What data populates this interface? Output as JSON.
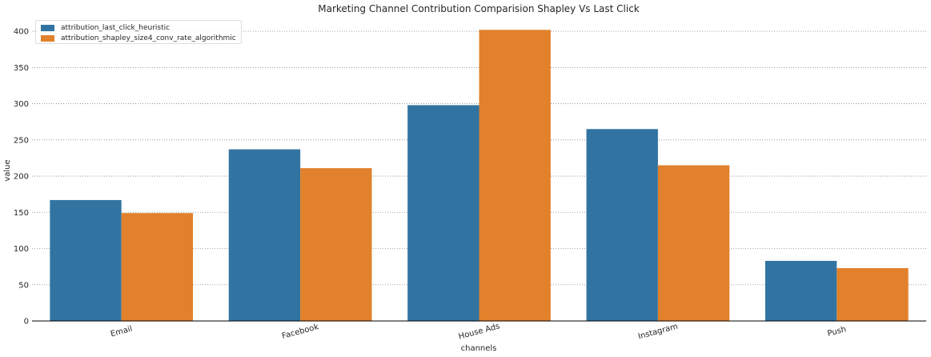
{
  "chart_data": {
    "type": "bar",
    "title": "Marketing Channel Contribution Comparision Shapley Vs Last Click",
    "xlabel": "channels",
    "ylabel": "value",
    "categories": [
      "Email",
      "Facebook",
      "House Ads",
      "Instagram",
      "Push"
    ],
    "series": [
      {
        "name": "attribution_last_click_heuristic",
        "color": "#3274a1",
        "values": [
          167,
          237,
          298,
          265,
          83
        ]
      },
      {
        "name": "attribution_shapley_size4_conv_rate_algorithmic",
        "color": "#e1812c",
        "values": [
          149,
          211,
          402,
          215,
          73
        ]
      }
    ],
    "ylim": [
      0,
      420
    ],
    "yticks": [
      0,
      50,
      100,
      150,
      200,
      250,
      300,
      350,
      400
    ],
    "grid": "horizontal dotted",
    "legend_position": "top-left"
  }
}
